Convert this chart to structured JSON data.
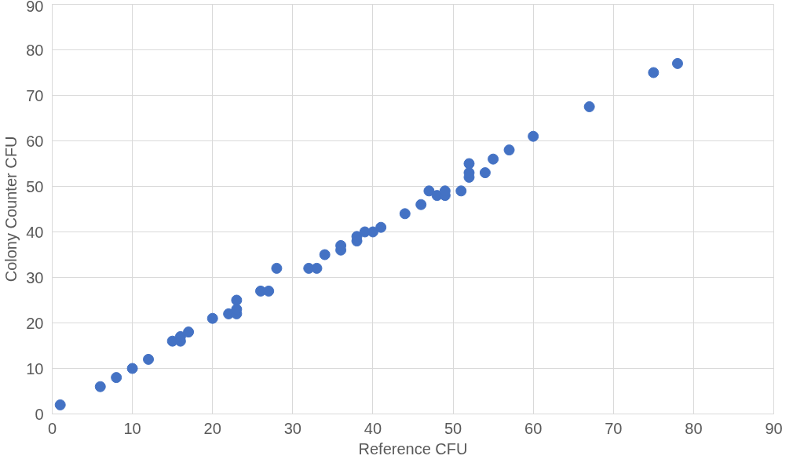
{
  "chart_data": {
    "type": "scatter",
    "xlabel": "Reference CFU",
    "ylabel": "Colony Counter CFU",
    "x": [
      1,
      6,
      8,
      10,
      12,
      15,
      16,
      16,
      17,
      20,
      22,
      23,
      23,
      23,
      26,
      27,
      28,
      32,
      33,
      34,
      36,
      36,
      38,
      38,
      39,
      40,
      41,
      44,
      46,
      47,
      48,
      49,
      49,
      51,
      52,
      52,
      52,
      54,
      55,
      57,
      60,
      67,
      75,
      78
    ],
    "series": [
      {
        "color": "#4472c4",
        "values": [
          2,
          6,
          8,
          10,
          12,
          16,
          16,
          17,
          18,
          21,
          22,
          22,
          23,
          25,
          27,
          27,
          32,
          32,
          32,
          35,
          36,
          37,
          38,
          39,
          40,
          40,
          41,
          44,
          46,
          49,
          48,
          48,
          49,
          49,
          52,
          53,
          55,
          53,
          56,
          58,
          61,
          67.5,
          75,
          77
        ]
      }
    ],
    "xlim": [
      0,
      90
    ],
    "ylim": [
      0,
      90
    ],
    "xticks": [
      0,
      10,
      20,
      30,
      40,
      50,
      60,
      70,
      80,
      90
    ],
    "yticks": [
      0,
      10,
      20,
      30,
      40,
      50,
      60,
      70,
      80,
      90
    ],
    "grid": true,
    "marker": "circle"
  }
}
